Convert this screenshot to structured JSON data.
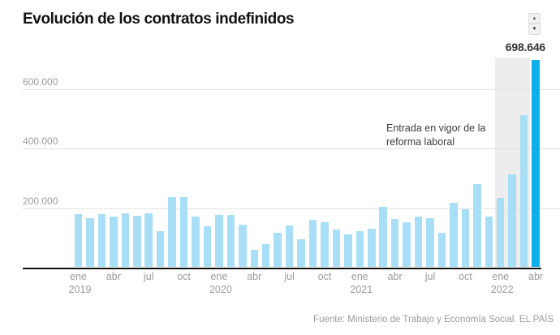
{
  "title": "Evolución de los contratos indefinidos",
  "controls": {
    "up_arrow": "▲",
    "down_arrow": "▼"
  },
  "annotation": {
    "line1": "Entrada en vigor de la",
    "line2": "reforma laboral"
  },
  "source": "Fuente: Ministerio de Trabajo y Economía Social. EL PAÍS",
  "colors": {
    "bar": "#A9DFF6",
    "highlight_bar": "#0CAEEC",
    "highlight_band": "#EDEDED",
    "gridline": "#e2e2e2",
    "axis_text": "#9b9b9b",
    "axis_line": "#111111"
  },
  "chart_data": {
    "type": "bar",
    "title": "Evolución de los contratos indefinidos",
    "peak_label": "698.646",
    "annotated_value": 698646,
    "categories": [
      "ene 2019",
      "feb 2019",
      "mar 2019",
      "abr 2019",
      "may 2019",
      "jun 2019",
      "jul 2019",
      "ago 2019",
      "sep 2019",
      "oct 2019",
      "nov 2019",
      "dic 2019",
      "ene 2020",
      "feb 2020",
      "mar 2020",
      "abr 2020",
      "may 2020",
      "jun 2020",
      "jul 2020",
      "ago 2020",
      "sep 2020",
      "oct 2020",
      "nov 2020",
      "dic 2020",
      "ene 2021",
      "feb 2021",
      "mar 2021",
      "abr 2021",
      "may 2021",
      "jun 2021",
      "jul 2021",
      "ago 2021",
      "sep 2021",
      "oct 2021",
      "nov 2021",
      "dic 2021",
      "ene 2022",
      "feb 2022",
      "mar 2022",
      "abr 2022"
    ],
    "values": [
      179000,
      167000,
      181000,
      173000,
      184000,
      175000,
      184000,
      122000,
      238000,
      238000,
      172000,
      139000,
      178000,
      178000,
      144000,
      60000,
      79000,
      116000,
      141000,
      96000,
      162000,
      153000,
      128000,
      113000,
      123000,
      130000,
      205000,
      164000,
      152000,
      171000,
      166000,
      118000,
      217000,
      196000,
      281000,
      173000,
      236000,
      314000,
      512000,
      698646
    ],
    "highlight_bar_index": 39,
    "highlight_band": {
      "start_index": 36,
      "end_index": 38
    },
    "ylim": [
      0,
      706000
    ],
    "grid": true,
    "y_ticks": [
      {
        "label": "600.000",
        "value": 600000
      },
      {
        "label": "400.000",
        "value": 400000
      },
      {
        "label": "200.000",
        "value": 200000
      }
    ],
    "x_tick_months": [
      "ene",
      "abr",
      "jul",
      "oct"
    ],
    "x_year_labels": [
      "2019",
      "2020",
      "2021",
      "2022"
    ]
  }
}
